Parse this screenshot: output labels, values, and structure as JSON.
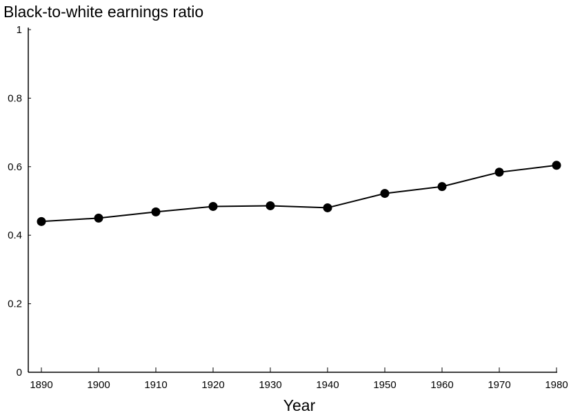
{
  "chart_data": {
    "type": "line",
    "title": "Black-to-white earnings ratio",
    "xlabel": "Year",
    "ylabel": "",
    "x": [
      1890,
      1900,
      1910,
      1920,
      1930,
      1940,
      1950,
      1960,
      1970,
      1980
    ],
    "series": [
      {
        "values": [
          0.44,
          0.45,
          0.468,
          0.484,
          0.486,
          0.48,
          0.522,
          0.542,
          0.584,
          0.604
        ]
      }
    ],
    "ylim": [
      0,
      1
    ],
    "xlim": [
      1890,
      1980
    ],
    "yticks": [
      0,
      0.2,
      0.4,
      0.6,
      0.8,
      1
    ],
    "ytick_labels": [
      "0",
      "0.2",
      "0.4",
      "0.6",
      "0.8",
      "1"
    ],
    "xtick_labels": [
      "1890",
      "1900",
      "1910",
      "1920",
      "1930",
      "1940",
      "1950",
      "1960",
      "1970",
      "1980"
    ],
    "grid": false,
    "legend": "none",
    "colors": {
      "line": "#000000",
      "marker": "#000000"
    }
  }
}
